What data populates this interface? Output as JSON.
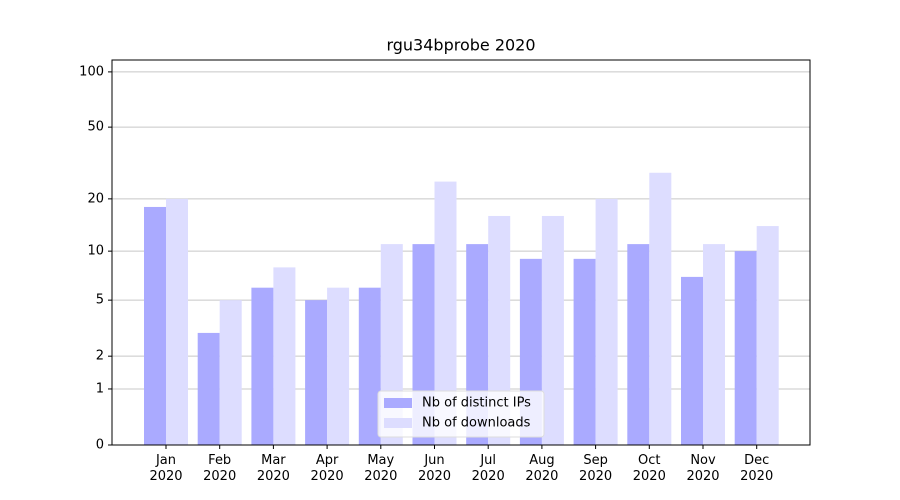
{
  "chart_data": {
    "type": "bar",
    "title": "rgu34bprobe 2020",
    "categories": [
      "Jan\n2020",
      "Feb\n2020",
      "Mar\n2020",
      "Apr\n2020",
      "May\n2020",
      "Jun\n2020",
      "Jul\n2020",
      "Aug\n2020",
      "Sep\n2020",
      "Oct\n2020",
      "Nov\n2020",
      "Dec\n2020"
    ],
    "series": [
      {
        "name": "Nb of distinct IPs",
        "color": "#aaaaff",
        "values": [
          18,
          3,
          6,
          5,
          6,
          11,
          11,
          9,
          9,
          11,
          7,
          10
        ]
      },
      {
        "name": "Nb of downloads",
        "color": "#ddddff",
        "values": [
          20,
          5,
          8,
          6,
          11,
          25,
          16,
          16,
          20,
          28,
          11,
          14
        ]
      }
    ],
    "yscale": "log1p",
    "ylim": [
      0,
      116
    ],
    "yticks": [
      0,
      1,
      2,
      5,
      10,
      20,
      50,
      100
    ],
    "grid": true,
    "legend": "lower center"
  }
}
